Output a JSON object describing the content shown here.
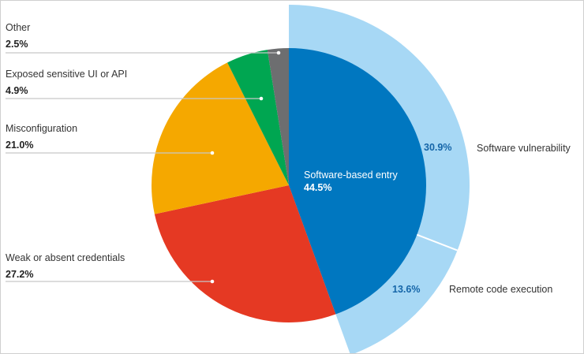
{
  "chart_data": {
    "type": "pie",
    "slices": [
      {
        "label": "Software-based entry",
        "value": 44.5,
        "display": "44.5%",
        "color": "#0077c0"
      },
      {
        "label": "Weak or absent credentials",
        "value": 27.2,
        "display": "27.2%",
        "color": "#e53923"
      },
      {
        "label": "Misconfiguration",
        "value": 21.0,
        "display": "21.0%",
        "color": "#f5a800"
      },
      {
        "label": "Exposed sensitive UI or API",
        "value": 4.9,
        "display": "4.9%",
        "color": "#00a651"
      },
      {
        "label": "Other",
        "value": 2.5,
        "display": "2.5%",
        "color": "#6d6e70"
      }
    ],
    "outer_ring": {
      "parent": "Software-based entry",
      "color": "#a7d8f5",
      "segments": [
        {
          "label": "Software vulnerability",
          "value": 30.9,
          "display": "30.9%"
        },
        {
          "label": "Remote code execution",
          "value": 13.6,
          "display": "13.6%"
        }
      ]
    }
  }
}
